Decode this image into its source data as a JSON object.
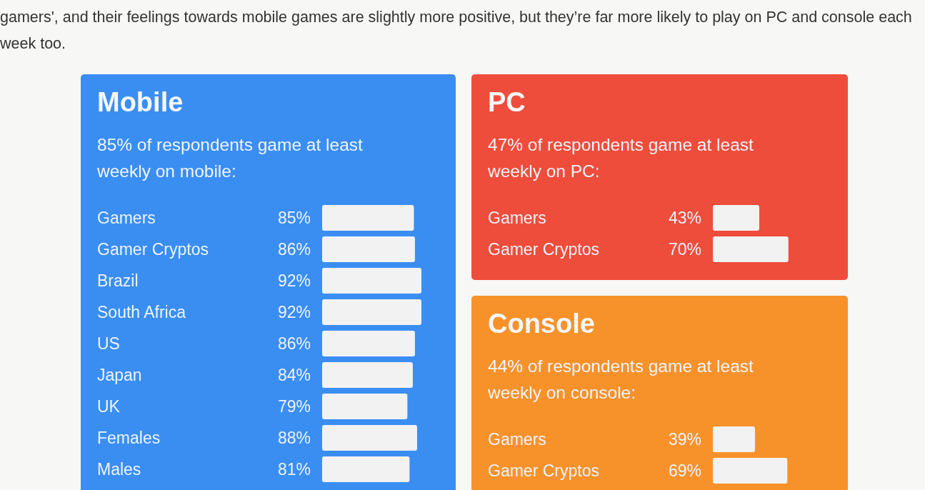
{
  "chart_data": [
    {
      "type": "bar",
      "orientation": "horizontal",
      "title": "Mobile",
      "subtitle": "85% of respondents game at least weekly on mobile:",
      "annotations": [
        "gamers', and their feelings towards mobile games are slightly more positive, but they’re far more likely to play on PC and console each week too."
      ],
      "categories": [
        "Gamers",
        "Gamer Cryptos",
        "Brazil",
        "South Africa",
        "US",
        "Japan",
        "UK",
        "Females",
        "Males"
      ],
      "values": [
        85,
        86,
        92,
        92,
        86,
        84,
        79,
        88,
        81
      ],
      "value_labels": [
        "85%",
        "86%",
        "92%",
        "92%",
        "86%",
        "84%",
        "79%",
        "88%",
        "81%"
      ],
      "color": "#f2f2f2"
    },
    {
      "type": "bar",
      "orientation": "horizontal",
      "title": "PC",
      "subtitle": "47% of respondents game at least weekly on PC:",
      "categories": [
        "Gamers",
        "Gamer Cryptos"
      ],
      "values": [
        43,
        70
      ],
      "value_labels": [
        "43%",
        "70%"
      ],
      "color": "#f2f2f2"
    },
    {
      "type": "bar",
      "orientation": "horizontal",
      "title": "Console",
      "subtitle": "44% of respondents game at least weekly on console:",
      "categories": [
        "Gamers",
        "Gamer Cryptos"
      ],
      "values": [
        39,
        69
      ],
      "value_labels": [
        "39%",
        "69%"
      ],
      "color": "#f2f2f2"
    }
  ]
}
